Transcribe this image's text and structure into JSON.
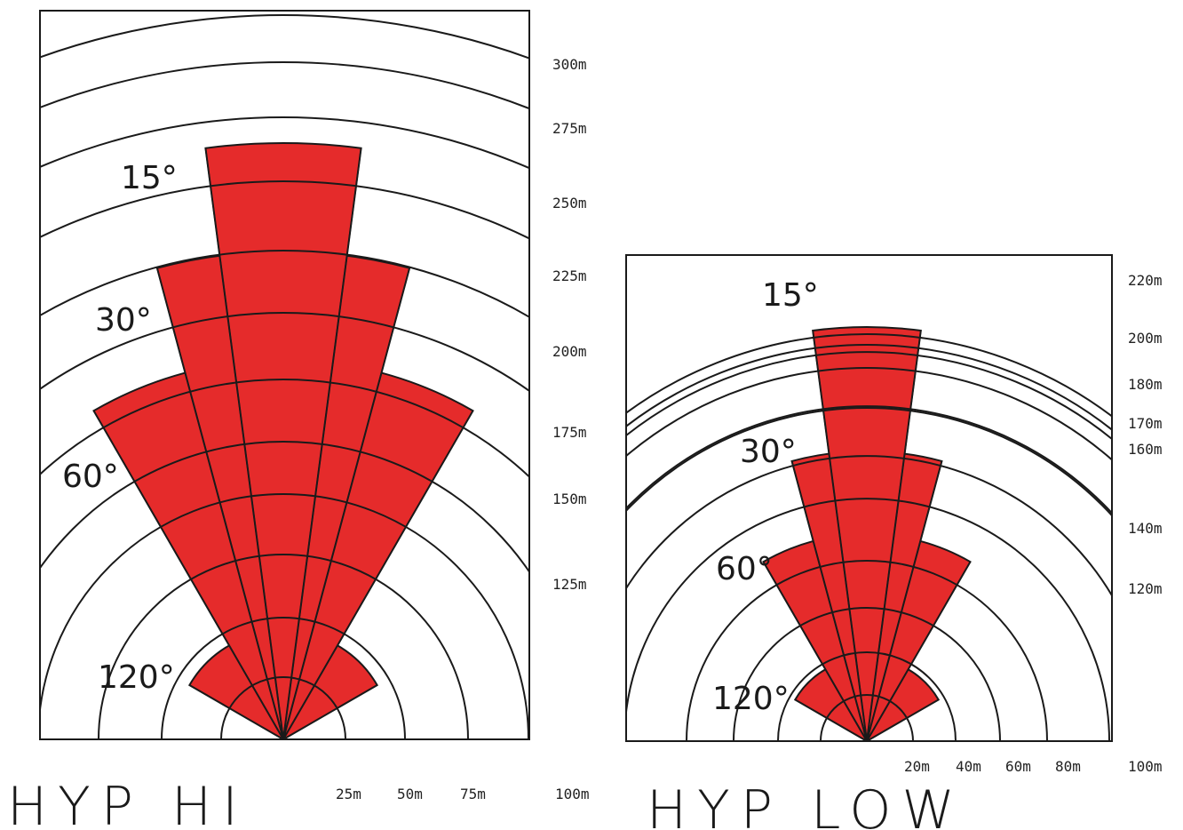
{
  "diagrams": [
    {
      "id": "hi",
      "title": "HYP HI",
      "radius_labels": [
        "300m",
        "275m",
        "250m",
        "225m",
        "200m",
        "175m",
        "150m",
        "125m"
      ],
      "bottom_labels": [
        "25m",
        "50m",
        "75m",
        "100m"
      ],
      "beams": [
        {
          "label": "15°",
          "angle": 15,
          "range": 275
        },
        {
          "label": "30°",
          "angle": 30,
          "range": 225
        },
        {
          "label": "60°",
          "angle": 60,
          "range": 175
        },
        {
          "label": "120°",
          "angle": 120,
          "range": 50
        }
      ]
    },
    {
      "id": "low",
      "title": "HYP LOW",
      "radius_labels": [
        "220m",
        "200m",
        "180m",
        "170m",
        "160m",
        "140m",
        "120m"
      ],
      "bottom_labels": [
        "20m",
        "40m",
        "60m",
        "80m",
        "100m"
      ],
      "beams": [
        {
          "label": "15°",
          "angle": 15,
          "range": 200
        },
        {
          "label": "30°",
          "angle": 30,
          "range": 140
        },
        {
          "label": "60°",
          "angle": 60,
          "range": 100
        },
        {
          "label": "120°",
          "angle": 120,
          "range": 40
        }
      ]
    }
  ],
  "colors": {
    "beam": "#e52b2b",
    "line": "#1a1a1a"
  }
}
